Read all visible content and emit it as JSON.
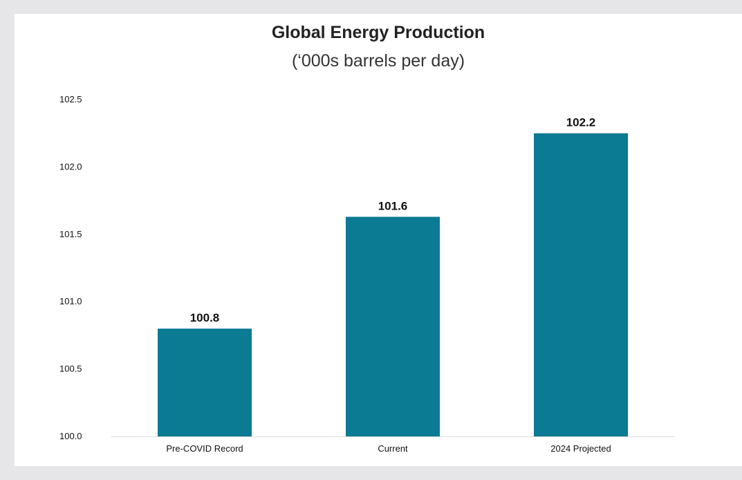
{
  "chart_data": {
    "type": "bar",
    "title": "Global Energy Production",
    "subtitle": "(‘000s barrels per day)",
    "xlabel": "",
    "ylabel": "",
    "categories": [
      "Pre-COVID Record",
      "Current",
      "2024 Projected"
    ],
    "values": [
      100.8,
      101.63,
      102.25
    ],
    "data_labels": [
      "100.8",
      "101.6",
      "102.2"
    ],
    "ylim": [
      100.0,
      102.5
    ],
    "yticks": [
      "100.0",
      "100.5",
      "101.0",
      "101.5",
      "102.0",
      "102.5"
    ],
    "grid": false,
    "legend": "none",
    "bar_color": "#0b7a93"
  }
}
